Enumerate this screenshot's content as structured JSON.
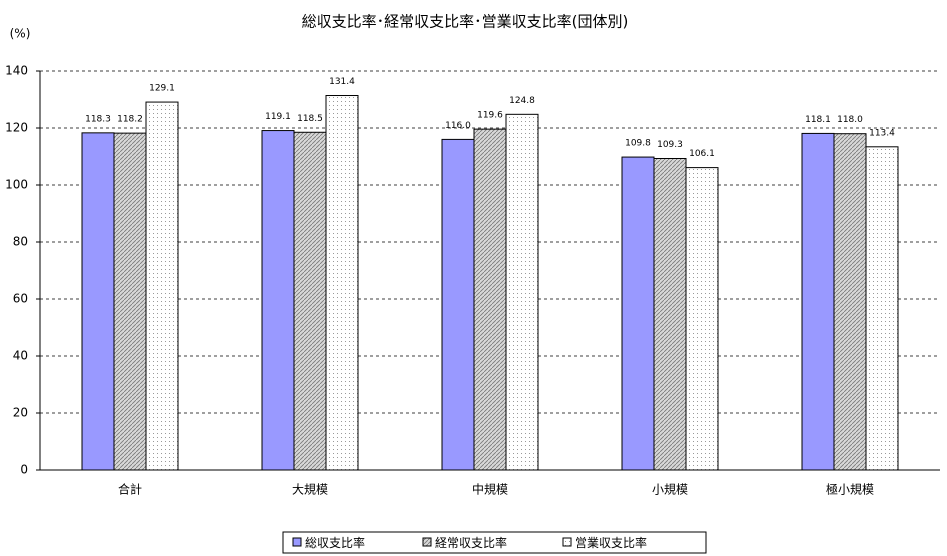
{
  "chart_data": {
    "type": "bar",
    "title": "総収支比率･経常収支比率･営業収支比率(団体別)",
    "y_label": "(%)",
    "categories": [
      "合計",
      "大規模",
      "中規模",
      "小規模",
      "極小規模"
    ],
    "series": [
      {
        "name": "総収支比率",
        "color": "#9999ff",
        "pattern": "solid",
        "values": [
          118.3,
          119.1,
          116.0,
          109.8,
          118.1
        ],
        "value_labels": [
          "118.3",
          "119.1",
          "116.0",
          "109.8",
          "118.1"
        ]
      },
      {
        "name": "経常収支比率",
        "color": "#c0c0c0",
        "pattern": "hatch",
        "values": [
          118.2,
          118.5,
          119.6,
          109.3,
          118.0
        ],
        "value_labels": [
          "118.2",
          "118.5",
          "119.6",
          "109.3",
          "118.0"
        ]
      },
      {
        "name": "営業収支比率",
        "color": "#ffffff",
        "pattern": "dots",
        "values": [
          129.1,
          131.4,
          124.8,
          106.1,
          113.4
        ],
        "value_labels": [
          "129.1",
          "131.4",
          "124.8",
          "106.1",
          "113.4"
        ]
      }
    ],
    "ylim": [
      0,
      140
    ],
    "yticks": [
      0,
      20,
      40,
      60,
      80,
      100,
      120,
      140
    ],
    "grid": true,
    "legend": "bottom"
  }
}
